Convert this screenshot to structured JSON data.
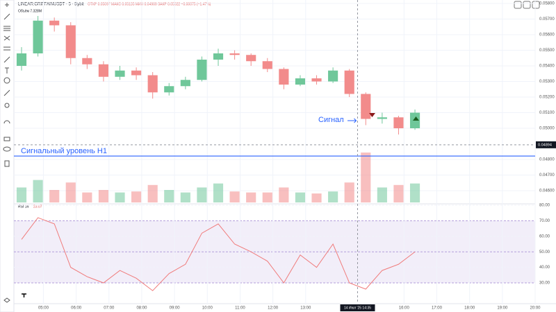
{
  "header": {
    "symbol": "LINEAR:GRIFFAINUSDT · 5 · Bybit",
    "ohlc": "ОТКР 0.05097 МАКС 0.05135 МИН 0.04969 ЗАКР 0.05022 −0.00075 (−1.47%)",
    "volume_label": "Объём 7.328M",
    "rsi_label": "RSI 14",
    "rsi_value": "23.07"
  },
  "annotations": {
    "signal": "Сигнал",
    "level": "Сигнальный уровень H1"
  },
  "chart_data": {
    "type": "candlestick",
    "x": [
      "04:20",
      "04:50",
      "05:20",
      "05:50",
      "06:20",
      "06:50",
      "07:20",
      "07:50",
      "08:20",
      "08:50",
      "09:20",
      "09:50",
      "10:20",
      "10:50",
      "11:20",
      "11:50",
      "12:20",
      "12:50",
      "13:20",
      "13:50",
      "14:20",
      "14:50",
      "15:20",
      "15:50",
      "16:20"
    ],
    "open": [
      0.054,
      0.0548,
      0.0569,
      0.0566,
      0.0545,
      0.0541,
      0.0533,
      0.0537,
      0.0534,
      0.0523,
      0.0527,
      0.0531,
      0.0544,
      0.0548,
      0.0547,
      0.0543,
      0.0538,
      0.0528,
      0.0532,
      0.053,
      0.0537,
      0.0522,
      0.0506,
      0.0507,
      0.05
    ],
    "high": [
      0.0552,
      0.0572,
      0.0571,
      0.0568,
      0.0547,
      0.0543,
      0.054,
      0.0539,
      0.0536,
      0.0529,
      0.0533,
      0.0546,
      0.0551,
      0.055,
      0.0548,
      0.0545,
      0.0539,
      0.0534,
      0.0534,
      0.0539,
      0.0538,
      0.0523,
      0.051,
      0.0508,
      0.0512
    ],
    "low": [
      0.0537,
      0.0546,
      0.0562,
      0.0541,
      0.0538,
      0.053,
      0.0531,
      0.0531,
      0.0519,
      0.0521,
      0.0525,
      0.053,
      0.054,
      0.0544,
      0.054,
      0.0536,
      0.0525,
      0.0527,
      0.0528,
      0.0529,
      0.052,
      0.0502,
      0.0503,
      0.0496,
      0.0499
    ],
    "close": [
      0.0548,
      0.0569,
      0.0566,
      0.0545,
      0.0541,
      0.0533,
      0.0537,
      0.0534,
      0.0523,
      0.0527,
      0.0531,
      0.0544,
      0.0548,
      0.0547,
      0.0543,
      0.0538,
      0.0528,
      0.0532,
      0.053,
      0.0537,
      0.0522,
      0.0506,
      0.0507,
      0.05,
      0.051
    ],
    "volume": [
      30,
      45,
      25,
      40,
      20,
      25,
      20,
      22,
      35,
      25,
      20,
      30,
      38,
      22,
      20,
      20,
      30,
      20,
      18,
      22,
      40,
      100,
      30,
      35,
      38
    ],
    "up_color": "#6fc79a",
    "down_color": "#f28b8b",
    "ylim": [
      0.0452,
      0.058
    ],
    "yticks": [
      {
        "value": 0.058,
        "label": "0.05800"
      },
      {
        "value": 0.057,
        "label": "0.05700"
      },
      {
        "value": 0.056,
        "label": "0.05600"
      },
      {
        "value": 0.055,
        "label": "0.05500"
      },
      {
        "value": 0.054,
        "label": "0.05400"
      },
      {
        "value": 0.053,
        "label": "0.05300"
      },
      {
        "value": 0.052,
        "label": "0.05200"
      },
      {
        "value": 0.051,
        "label": "0.05100"
      },
      {
        "value": 0.05,
        "label": "0.05000"
      },
      {
        "value": 0.048,
        "label": "0.04800"
      },
      {
        "value": 0.047,
        "label": "0.04700"
      },
      {
        "value": 0.046,
        "label": "0.04600"
      }
    ],
    "crosshair_price": 0.04894,
    "crosshair_time": "14 Июл '25 14:35",
    "level_price": 0.04822,
    "level_color": "#2962ff",
    "xlim": [
      "04:06",
      "20:00"
    ],
    "xticks": [
      "05:00",
      "06:00",
      "07:00",
      "08:00",
      "09:00",
      "10:00",
      "11:00",
      "12:00",
      "13:00",
      "16:00",
      "17:00",
      "18:00",
      "19:00",
      "20:00"
    ],
    "rsi": {
      "values": [
        58,
        72,
        68,
        40,
        34,
        30,
        38,
        33,
        25,
        36,
        42,
        62,
        68,
        55,
        50,
        44,
        30,
        48,
        40,
        55,
        30,
        26,
        38,
        42,
        50
      ],
      "color": "#f07b7b",
      "ylim": [
        19.3,
        80
      ],
      "yticks": [
        {
          "value": 80,
          "label": "80.00"
        },
        {
          "value": 70,
          "label": "70.00"
        },
        {
          "value": 60,
          "label": "60.00"
        },
        {
          "value": 50,
          "label": "50.00"
        },
        {
          "value": 40,
          "label": "40.00"
        },
        {
          "value": 30,
          "label": "30.00"
        }
      ],
      "band": [
        30,
        70
      ]
    }
  }
}
